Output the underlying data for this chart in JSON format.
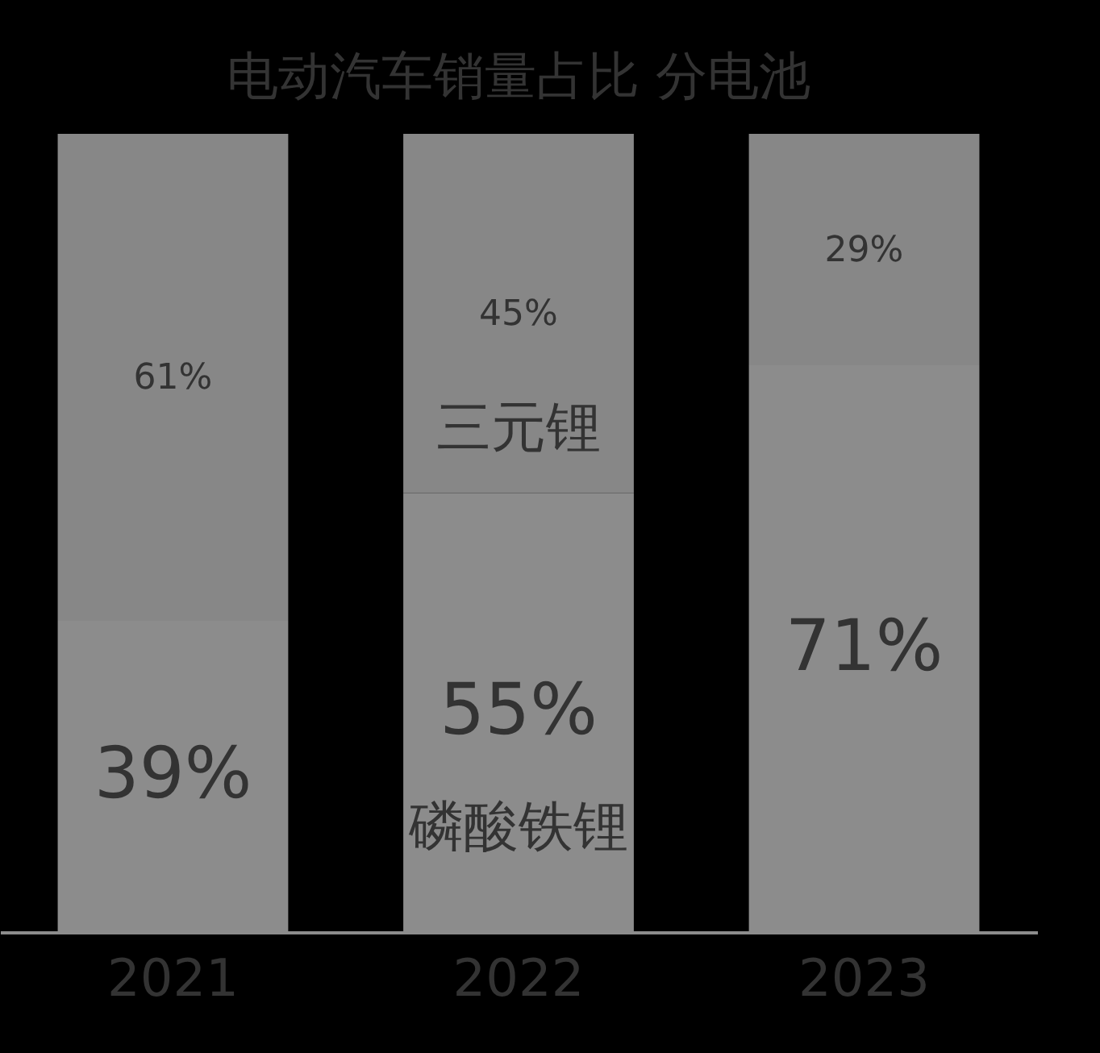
{
  "chart_data": {
    "type": "bar",
    "title": "电动汽车销量占比 分电池",
    "stacked": true,
    "legend": false,
    "grid": false,
    "tick_labels": "x",
    "categories": [
      "2021",
      "2022",
      "2023"
    ],
    "series": [
      {
        "name": "磷酸铁锂",
        "color": "#8c8c8c",
        "values": [
          39,
          55,
          71
        ],
        "value_labels": [
          "39%",
          "55%",
          "71%"
        ]
      },
      {
        "name": "三元锂",
        "color": "#878787",
        "values": [
          61,
          45,
          29
        ],
        "value_labels": [
          "61%",
          "45%",
          "29%"
        ]
      }
    ]
  }
}
